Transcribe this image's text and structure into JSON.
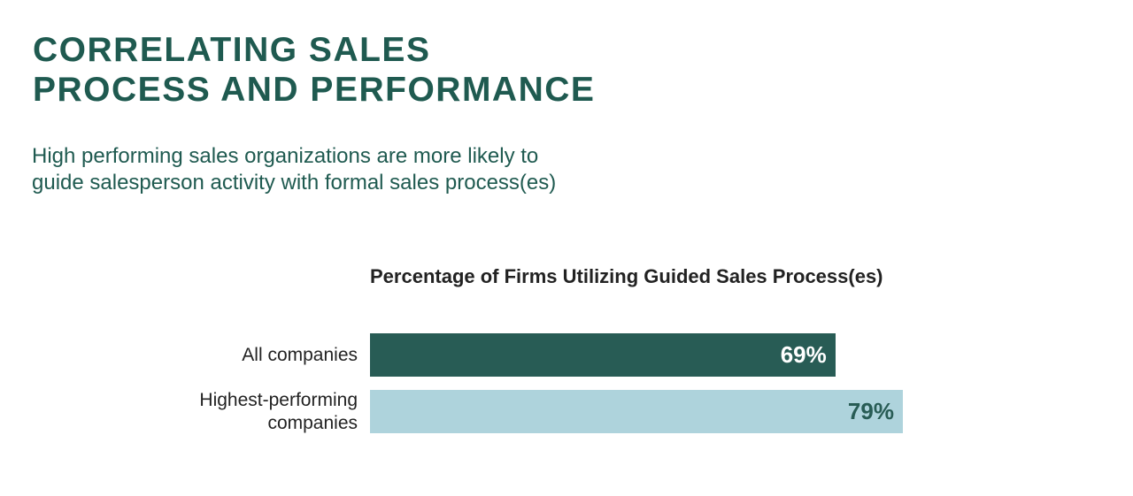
{
  "chart_data": {
    "type": "bar",
    "orientation": "horizontal",
    "title": "CORRELATING SALES PROCESS AND PERFORMANCE",
    "subtitle": "High performing sales organizations are more likely to guide salesperson activity with formal sales process(es)",
    "chart_title": "Percentage of Firms Utilizing Guided Sales Process(es)",
    "categories": [
      "All companies",
      "Highest-performing companies"
    ],
    "values": [
      69,
      79
    ],
    "value_labels": [
      "69%",
      "79%"
    ],
    "colors": [
      "#285c55",
      "#aed3dc"
    ],
    "value_label_colors": [
      "#ffffff",
      "#285c55"
    ],
    "xlim": [
      0,
      100
    ]
  }
}
